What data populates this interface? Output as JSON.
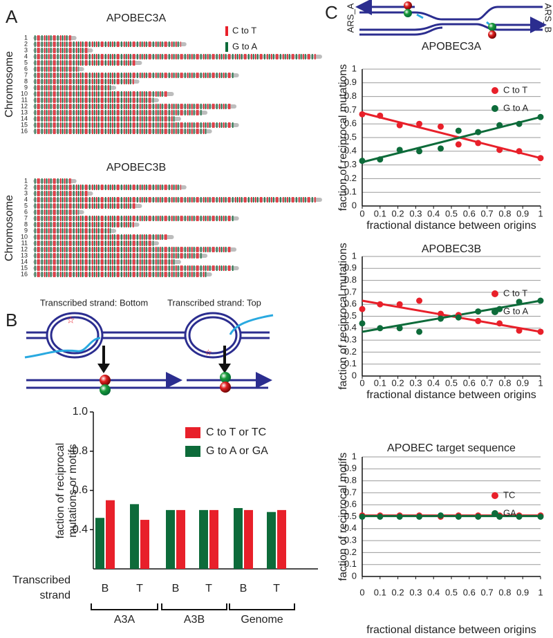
{
  "labels": {
    "panel_a": "A",
    "panel_b": "B",
    "panel_c": "C",
    "diagram_b_left": "Transcribed strand: Bottom",
    "diagram_b_right": "Transcribed strand: Top",
    "ars_a": "ARS_A",
    "ars_b": "ARS_B"
  },
  "chart_data": [
    {
      "type": "chromosome_map",
      "title": "APOBEC3A",
      "ylabel": "Chromosome",
      "categories": [
        "1",
        "2",
        "3",
        "4",
        "5",
        "6",
        "7",
        "8",
        "9",
        "10",
        "11",
        "12",
        "13",
        "14",
        "15",
        "16"
      ],
      "lengths": [
        230,
        813,
        317,
        1532,
        577,
        270,
        1091,
        563,
        440,
        746,
        667,
        1078,
        924,
        784,
        1091,
        948
      ],
      "series": [
        {
          "name": "C to T",
          "color": "#e8202a"
        },
        {
          "name": "G to A",
          "color": "#0d6b3a"
        }
      ]
    },
    {
      "type": "chromosome_map",
      "title": "APOBEC3B",
      "ylabel": "Chromosome",
      "categories": [
        "1",
        "2",
        "3",
        "4",
        "5",
        "6",
        "7",
        "8",
        "9",
        "10",
        "11",
        "12",
        "13",
        "14",
        "15",
        "16"
      ],
      "lengths": [
        230,
        813,
        317,
        1532,
        577,
        270,
        1091,
        563,
        440,
        746,
        667,
        1078,
        924,
        784,
        1091,
        948
      ]
    },
    {
      "type": "bar",
      "ylabel": [
        "faction of reciprocal",
        "mutations or motifs"
      ],
      "xlabel": [
        "Transcribed",
        "strand"
      ],
      "categories": [
        "B",
        "T",
        "B",
        "T",
        "B",
        "T"
      ],
      "groups": [
        "A3A",
        "A3B",
        "Genome"
      ],
      "ylim": [
        0.2,
        1
      ],
      "yticks": [
        0.4,
        0.6,
        0.8,
        {
          "value": 1,
          "label": "1.0"
        }
      ],
      "series": [
        {
          "name": "C to T or TC",
          "color": "#e8202a",
          "values": [
            0.55,
            0.45,
            0.5,
            0.5,
            0.5,
            0.5
          ]
        },
        {
          "name": "G to A or GA",
          "color": "#0d6b3a",
          "values": [
            0.46,
            0.53,
            0.5,
            0.5,
            0.51,
            0.49
          ]
        }
      ]
    },
    {
      "type": "scatter",
      "title": "APOBEC3A",
      "xlabel": "fractional distance between origins",
      "ylabel": "faction of reciprocal mutations",
      "xlim": [
        0,
        1
      ],
      "ylim": [
        0,
        1
      ],
      "xticks": [
        0,
        0.1,
        0.2,
        0.3,
        0.4,
        0.5,
        0.6,
        0.7,
        0.8,
        0.9,
        1
      ],
      "yticks": [
        0,
        0.1,
        0.2,
        0.3,
        0.4,
        0.5,
        0.6,
        0.7,
        0.8,
        0.9,
        1
      ],
      "grid": true,
      "x": [
        0,
        0.1,
        0.21,
        0.32,
        0.44,
        0.54,
        0.65,
        0.77,
        0.88,
        1
      ],
      "series": [
        {
          "name": "C to T",
          "color": "#e8202a",
          "values": [
            0.67,
            0.66,
            0.59,
            0.6,
            0.58,
            0.45,
            0.46,
            0.41,
            0.4,
            0.35
          ],
          "trend": [
            0.68,
            0.35
          ]
        },
        {
          "name": "G to A",
          "color": "#0d6b3a",
          "values": [
            0.33,
            0.34,
            0.41,
            0.4,
            0.42,
            0.55,
            0.54,
            0.59,
            0.6,
            0.65
          ],
          "trend": [
            0.32,
            0.65
          ]
        }
      ]
    },
    {
      "type": "scatter",
      "title": "APOBEC3B",
      "xlabel": "fractional distance between origins",
      "ylabel": "faction of reciprocal mutations",
      "xlim": [
        0,
        1
      ],
      "ylim": [
        0,
        1
      ],
      "xticks": [
        0,
        0.1,
        0.2,
        0.3,
        0.4,
        0.5,
        0.6,
        0.7,
        0.8,
        0.9,
        1
      ],
      "yticks": [
        0,
        0.1,
        0.2,
        0.3,
        0.4,
        0.5,
        0.6,
        0.7,
        0.8,
        0.9,
        1
      ],
      "grid": true,
      "x": [
        0,
        0.1,
        0.21,
        0.32,
        0.44,
        0.54,
        0.65,
        0.77,
        0.88,
        1
      ],
      "series": [
        {
          "name": "C to T",
          "color": "#e8202a",
          "values": [
            0.56,
            0.6,
            0.6,
            0.63,
            0.52,
            0.51,
            0.46,
            0.44,
            0.38,
            0.37
          ],
          "trend": [
            0.63,
            0.37
          ]
        },
        {
          "name": "G to A",
          "color": "#0d6b3a",
          "values": [
            0.44,
            0.4,
            0.4,
            0.37,
            0.48,
            0.49,
            0.54,
            0.56,
            0.62,
            0.63
          ],
          "trend": [
            0.37,
            0.63
          ]
        }
      ]
    },
    {
      "type": "scatter",
      "title": "APOBEC target sequence",
      "xlabel": "fractional distance between origins",
      "ylabel": "faction of reciprocal motifs",
      "xlim": [
        0,
        1
      ],
      "ylim": [
        0,
        1
      ],
      "xticks": [
        0,
        0.1,
        0.2,
        0.3,
        0.4,
        0.5,
        0.6,
        0.7,
        0.8,
        0.9,
        1
      ],
      "yticks": [
        0,
        0.1,
        0.2,
        0.3,
        0.4,
        0.5,
        0.6,
        0.7,
        0.8,
        0.9,
        1
      ],
      "grid": true,
      "x": [
        0,
        0.1,
        0.21,
        0.32,
        0.44,
        0.54,
        0.65,
        0.77,
        0.88,
        1
      ],
      "series": [
        {
          "name": "TC",
          "color": "#e8202a",
          "values": [
            0.51,
            0.51,
            0.51,
            0.51,
            0.5,
            0.51,
            0.51,
            0.51,
            0.51,
            0.51
          ],
          "trend": [
            0.51,
            0.51
          ]
        },
        {
          "name": "GA",
          "color": "#0d6b3a",
          "values": [
            0.5,
            0.5,
            0.5,
            0.5,
            0.51,
            0.5,
            0.5,
            0.5,
            0.5,
            0.5
          ],
          "trend": [
            0.505,
            0.505
          ]
        }
      ]
    }
  ]
}
